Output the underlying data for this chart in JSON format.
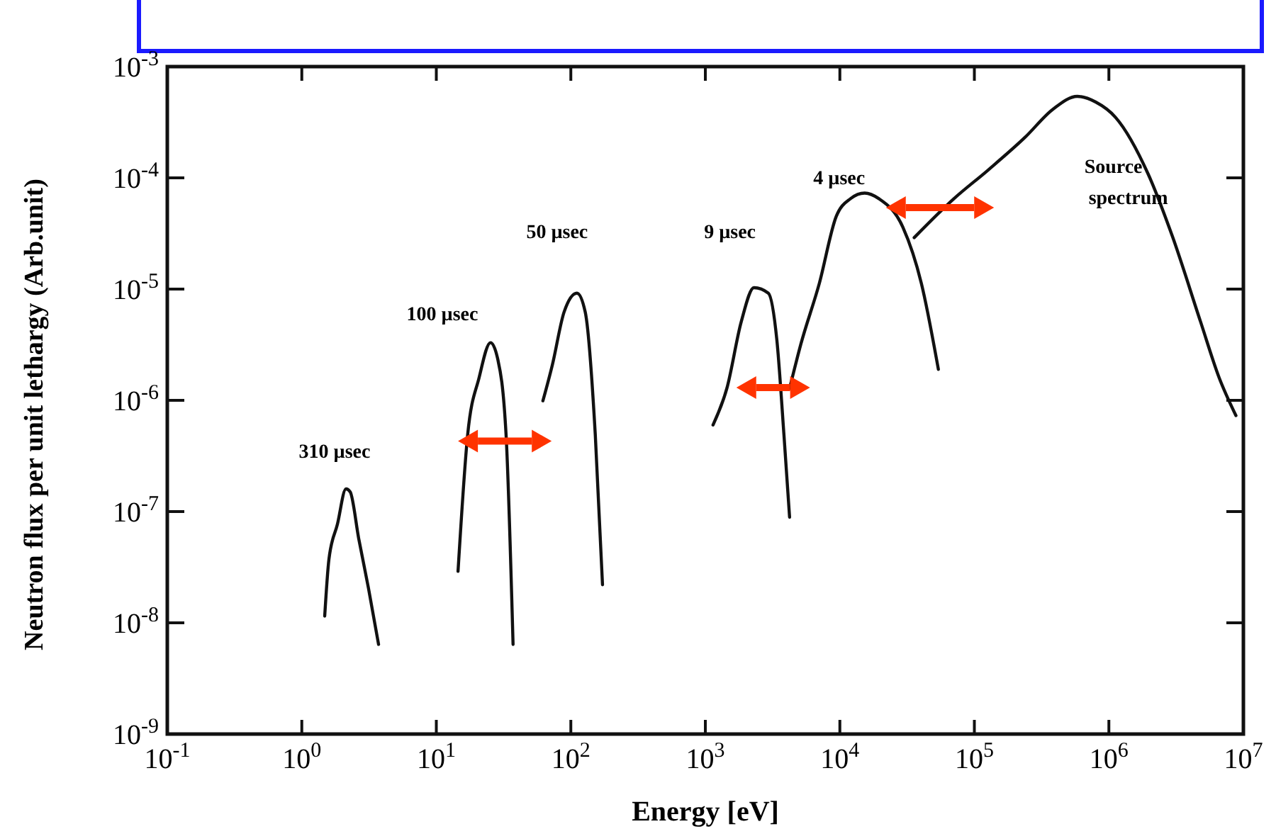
{
  "chart_data": {
    "type": "line",
    "xlabel": "Energy [eV]",
    "ylabel": "Neutron flux per unit lethargy (Arb.unit)",
    "log": "xy",
    "grid": false,
    "marker": "none",
    "line_style": "solid",
    "xlim": [
      0.1,
      10000000
    ],
    "ylim": [
      1e-09,
      0.001
    ],
    "xticks": [
      {
        "value": 0.1,
        "label": "10$^{-1}$"
      },
      {
        "value": 1,
        "label": "10$^{0}$"
      },
      {
        "value": 10,
        "label": "10$^{1}$"
      },
      {
        "value": 100,
        "label": "10$^{2}$"
      },
      {
        "value": 1000,
        "label": "10$^{3}$"
      },
      {
        "value": 10000,
        "label": "10$^{4}$"
      },
      {
        "value": 100000,
        "label": "10$^{5}$"
      },
      {
        "value": 1000000,
        "label": "10$^{6}$"
      },
      {
        "value": 10000000,
        "label": "10$^{7}$"
      }
    ],
    "yticks": [
      {
        "value": 1e-09,
        "label": "10$^{-9}$"
      },
      {
        "value": 1e-08,
        "label": "10$^{-8}$"
      },
      {
        "value": 1e-07,
        "label": "10$^{-7}$"
      },
      {
        "value": 1e-06,
        "label": "10$^{-6}$"
      },
      {
        "value": 1e-05,
        "label": "10$^{-5}$"
      },
      {
        "value": 0.0001,
        "label": "10$^{-4}$"
      },
      {
        "value": 0.001,
        "label": "10$^{-3}$"
      }
    ],
    "series": [
      {
        "name": "310 µsec",
        "color": "#111111",
        "x": [
          1.48,
          1.59,
          1.84,
          2.13,
          2.29,
          2.65,
          3.13,
          3.72
        ],
        "values": [
          1.15e-08,
          3.7e-08,
          7.7e-08,
          1.6e-07,
          1.5e-07,
          5.7e-08,
          2.05e-08,
          6.4e-09
        ]
      },
      {
        "name": "100 µsec",
        "color": "#111111",
        "x": [
          14.5,
          17.1,
          20.8,
          25.3,
          28.5,
          33,
          37.2
        ],
        "values": [
          2.9e-08,
          4.9e-07,
          1.6e-06,
          3.3e-06,
          2.4e-06,
          4.9e-07,
          6.4e-09
        ]
      },
      {
        "name": "50 µsec",
        "color": "#111111",
        "x": [
          62,
          73,
          89,
          111,
          128,
          152,
          172
        ],
        "values": [
          9.9e-07,
          2.1e-06,
          6.2e-06,
          9.2e-06,
          6.2e-06,
          4.9e-07,
          2.2e-08
        ]
      },
      {
        "name": "9 µsec",
        "color": "#111111",
        "x": [
          1140,
          1450,
          1850,
          2300,
          2940,
          3400,
          3840,
          4230
        ],
        "values": [
          6e-07,
          1.3e-06,
          5.1e-06,
          1.03e-05,
          9.2e-06,
          3.5e-06,
          4.9e-07,
          8.9e-08
        ]
      },
      {
        "name": "4 µsec",
        "color": "#111111",
        "x": [
          4230,
          5130,
          7030,
          9400,
          12000,
          15300,
          19500,
          29400,
          40400,
          54000
        ],
        "values": [
          1.28e-06,
          3.2e-06,
          1.12e-05,
          4.5e-05,
          6.5e-05,
          7.3e-05,
          6.5e-05,
          3.6e-05,
          1.12e-05,
          1.9e-06
        ]
      },
      {
        "name": "Source spectrum",
        "color": "#111111",
        "x": [
          35700,
          70500,
          126000,
          237000,
          385000,
          582000,
          798000,
          1120000,
          1960000,
          2960000,
          4800000,
          6600000,
          8800000
        ],
        "values": [
          2.9e-05,
          6.5e-05,
          0.000117,
          0.00023,
          0.000415,
          0.00054,
          0.00048,
          0.00035,
          0.000108,
          3e-05,
          5.1e-06,
          1.6e-06,
          7.3e-07
        ]
      }
    ]
  }
}
